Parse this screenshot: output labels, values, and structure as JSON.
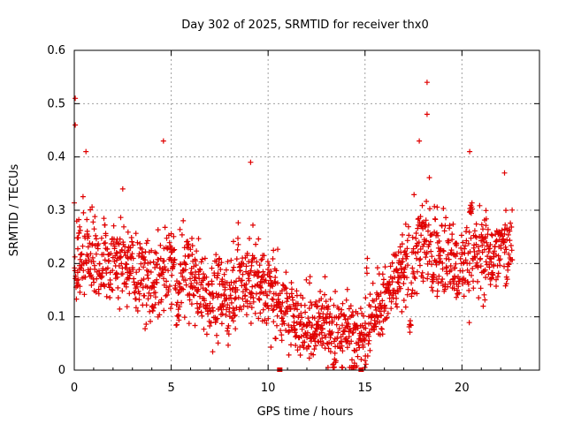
{
  "chart_data": {
    "type": "scatter",
    "title": "Day 302 of 2025, SRMTID for receiver thx0",
    "xlabel": "GPS time / hours",
    "ylabel": "SRMTID / TECUs",
    "xlim": [
      0,
      24
    ],
    "ylim": [
      0,
      0.6
    ],
    "x_ticks": [
      0,
      5,
      10,
      15,
      20
    ],
    "y_ticks": [
      0,
      0.1,
      0.2,
      0.3,
      0.4,
      0.5,
      0.6
    ],
    "x_tick_labels": [
      "0",
      "5",
      "10",
      "15",
      "20"
    ],
    "y_tick_labels": [
      "0",
      "0.1",
      "0.2",
      "0.3",
      "0.4",
      "0.5",
      "0.6"
    ],
    "grid": true,
    "marker": "plus",
    "color": "#e00000",
    "trend": {
      "x": [
        0,
        1,
        2,
        3,
        4,
        5,
        6,
        7,
        8,
        9,
        10,
        11,
        12,
        13,
        14,
        15,
        16,
        17,
        18,
        19,
        20,
        21,
        22,
        22.6
      ],
      "y": [
        0.22,
        0.22,
        0.21,
        0.2,
        0.16,
        0.2,
        0.17,
        0.14,
        0.15,
        0.18,
        0.15,
        0.11,
        0.08,
        0.09,
        0.07,
        0.08,
        0.13,
        0.18,
        0.24,
        0.22,
        0.2,
        0.22,
        0.22,
        0.25
      ]
    },
    "notable_points": [
      {
        "x": 0.05,
        "y": 0.51
      },
      {
        "x": 0.05,
        "y": 0.46
      },
      {
        "x": 0.6,
        "y": 0.41
      },
      {
        "x": 2.5,
        "y": 0.34
      },
      {
        "x": 4.6,
        "y": 0.43
      },
      {
        "x": 9.1,
        "y": 0.39
      },
      {
        "x": 12.0,
        "y": 0.04
      },
      {
        "x": 14.8,
        "y": 0.02
      },
      {
        "x": 17.8,
        "y": 0.43
      },
      {
        "x": 18.2,
        "y": 0.54
      },
      {
        "x": 18.2,
        "y": 0.48
      },
      {
        "x": 20.4,
        "y": 0.41
      },
      {
        "x": 22.2,
        "y": 0.37
      }
    ],
    "baseline_markers": [
      10.6,
      14.8
    ]
  }
}
